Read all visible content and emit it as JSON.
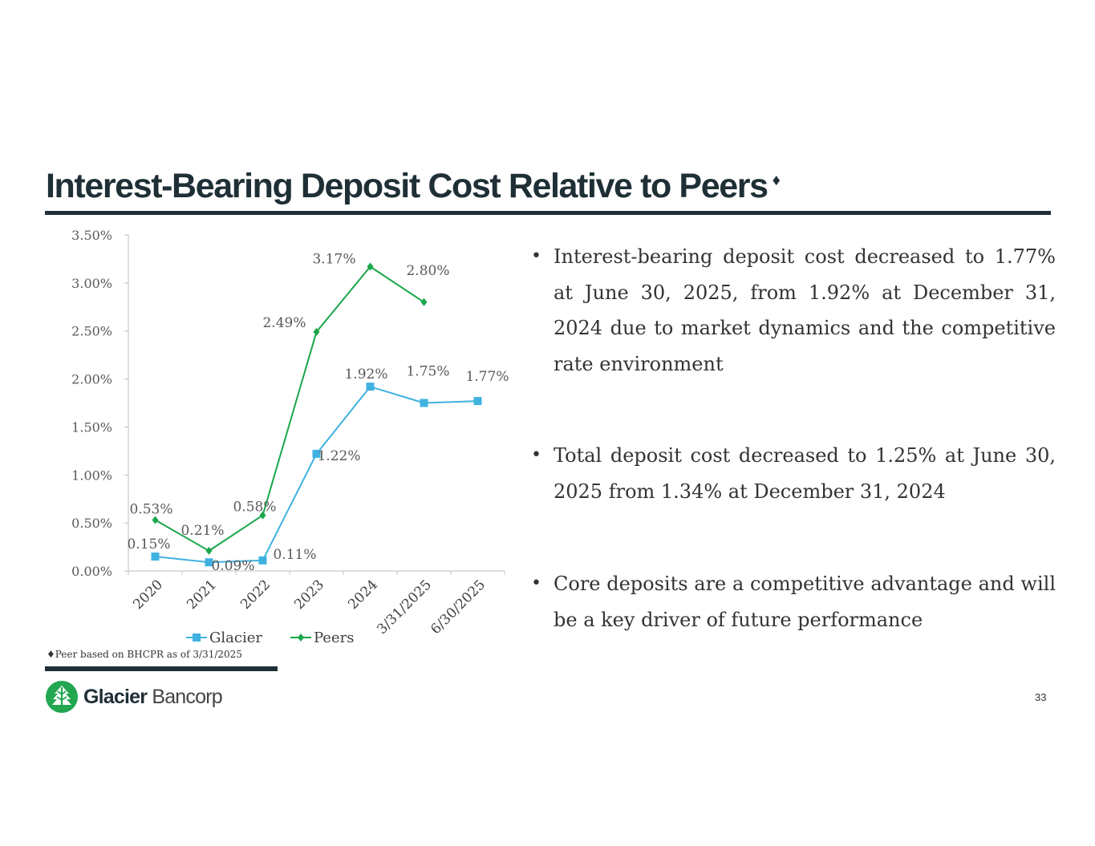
{
  "slide": {
    "title": "Interest-Bearing Deposit Cost Relative to Peers",
    "title_mark": "♦",
    "footnote": "♦Peer based on BHCPR as of 3/31/2025",
    "page_number": "33"
  },
  "bullets": [
    "Interest-bearing deposit cost decreased to 1.77% at June 30, 2025, from 1.92% at December 31, 2024 due to market dynamics and the competitive rate environment",
    "Total deposit cost decreased to 1.25% at June 30, 2025 from 1.34% at December 31, 2024",
    "Core deposits are a competitive advantage and will be a key driver of future performance"
  ],
  "logo": {
    "name_bold": "Glacier",
    "name_light": " Bancorp"
  },
  "colors": {
    "dark": "#1f2f36",
    "glacier": "#3fb2e0",
    "peers": "#1aa64a",
    "logo_green": "#22a650"
  },
  "chart_data": {
    "type": "line",
    "categories": [
      "2020",
      "2021",
      "2022",
      "2023",
      "2024",
      "3/31/2025",
      "6/30/2025"
    ],
    "series": [
      {
        "name": "Glacier",
        "color": "#3fb2e0",
        "marker": "square",
        "values": [
          0.15,
          0.09,
          0.11,
          1.22,
          1.92,
          1.75,
          1.77
        ],
        "labels": [
          "0.15%",
          "0.09%",
          "0.11%",
          "1.22%",
          "1.92%",
          "1.75%",
          "1.77%"
        ]
      },
      {
        "name": "Peers",
        "color": "#1aa64a",
        "marker": "diamond",
        "values": [
          0.53,
          0.21,
          0.58,
          2.49,
          3.17,
          2.8,
          null
        ],
        "labels": [
          "0.53%",
          "0.21%",
          "0.58%",
          "2.49%",
          "3.17%",
          "2.80%",
          null
        ]
      }
    ],
    "y_ticks": [
      "0.00%",
      "0.50%",
      "1.00%",
      "1.50%",
      "2.00%",
      "2.50%",
      "3.00%",
      "3.50%"
    ],
    "ylim": [
      0,
      3.5
    ],
    "legend": "bottom",
    "grid": false
  }
}
